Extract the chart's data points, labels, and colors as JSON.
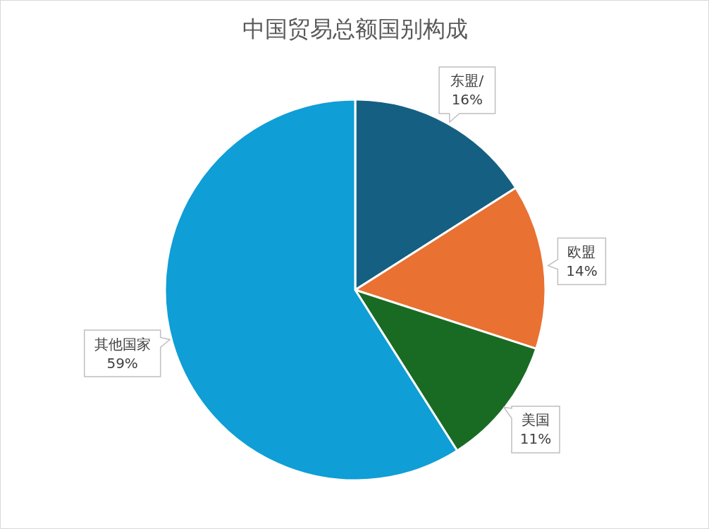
{
  "chart_data": {
    "type": "pie",
    "title": "中国贸易总额国别构成",
    "categories": [
      "东盟/",
      "欧盟",
      "美国",
      "其他国家"
    ],
    "values": [
      16,
      14,
      11,
      59
    ],
    "value_labels": [
      "16%",
      "14%",
      "11%",
      "59%"
    ],
    "colors": [
      "#156082",
      "#e97132",
      "#196b24",
      "#0f9ed5"
    ]
  }
}
